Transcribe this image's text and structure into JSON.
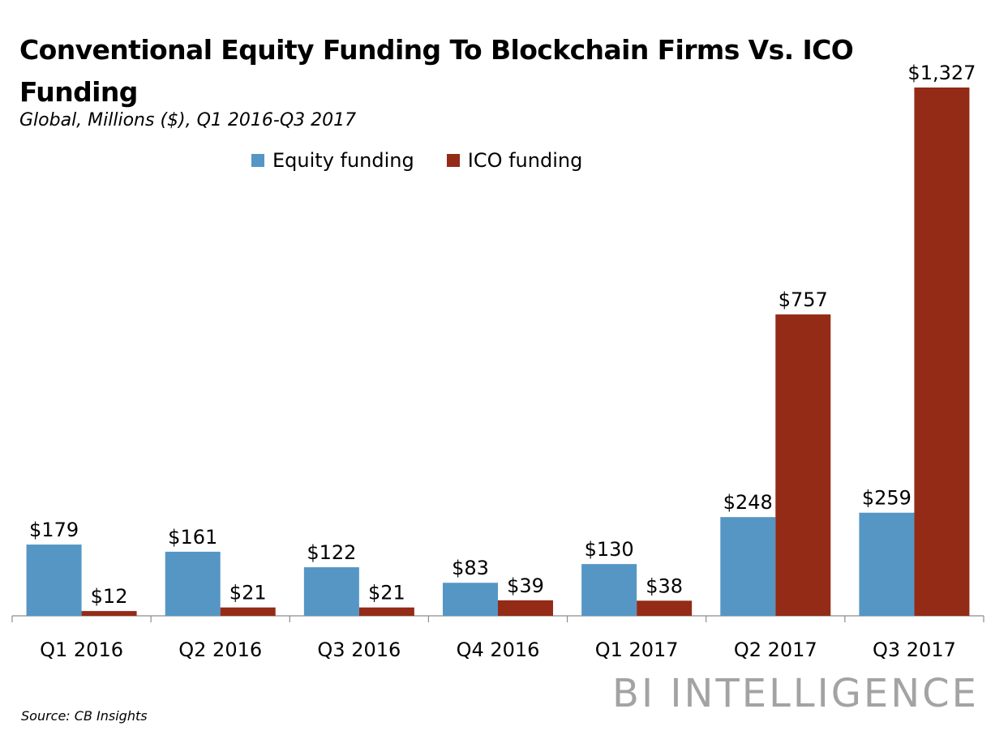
{
  "chart_data": {
    "type": "bar",
    "title": "Conventional Equity Funding To Blockchain Firms Vs. ICO Funding",
    "subtitle": "Global, Millions ($), Q1 2016-Q3 2017",
    "categories": [
      "Q1 2016",
      "Q2 2016",
      "Q3 2016",
      "Q4 2016",
      "Q1 2017",
      "Q2 2017",
      "Q3 2017"
    ],
    "series": [
      {
        "name": "Equity funding",
        "color": "#5596c5",
        "values": [
          179,
          161,
          122,
          83,
          130,
          248,
          259
        ],
        "labels": [
          "$179",
          "$161",
          "$122",
          "$83",
          "$130",
          "$248",
          "$259"
        ]
      },
      {
        "name": "ICO funding",
        "color": "#932b16",
        "values": [
          12,
          21,
          21,
          39,
          38,
          757,
          1327
        ],
        "labels": [
          "$12",
          "$21",
          "$21",
          "$39",
          "$38",
          "$757",
          "$1,327"
        ]
      }
    ],
    "ylim": [
      0,
      1350
    ],
    "xlabel": "",
    "ylabel": "",
    "grid": false,
    "legend_position": "top"
  },
  "source": "Source: CB Insights",
  "brand": "BI INTELLIGENCE"
}
